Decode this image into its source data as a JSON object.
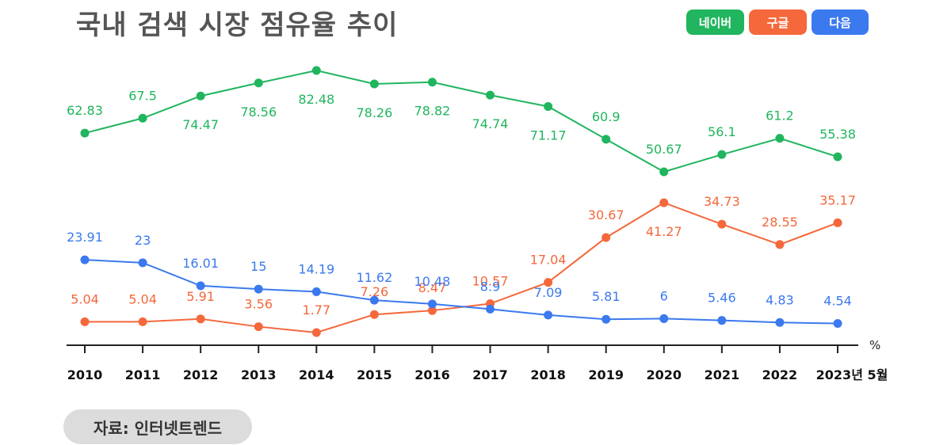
{
  "title": "국내 검색 시장 점유율 추이",
  "legend": [
    {
      "label": "네이버",
      "color": "#20b55e"
    },
    {
      "label": "구글",
      "color": "#f4683b"
    },
    {
      "label": "다음",
      "color": "#3b79ef"
    }
  ],
  "source": "자료: 인터넷트렌드",
  "chart_data": {
    "type": "line",
    "categories": [
      "2010",
      "2011",
      "2012",
      "2013",
      "2014",
      "2015",
      "2016",
      "2017",
      "2018",
      "2019",
      "2020",
      "2021",
      "2022",
      "2023년 5월"
    ],
    "unit_label": "%",
    "series": [
      {
        "name": "네이버",
        "color": "#20b55e",
        "values": [
          62.83,
          67.5,
          74.47,
          78.56,
          82.48,
          78.26,
          78.82,
          74.74,
          71.17,
          60.9,
          50.67,
          56.1,
          61.2,
          55.38
        ],
        "label_position": [
          "above",
          "above",
          "below",
          "below",
          "below",
          "below",
          "below",
          "below",
          "below",
          "above",
          "above",
          "above",
          "above",
          "above"
        ]
      },
      {
        "name": "구글",
        "color": "#f4683b",
        "values": [
          5.04,
          5.04,
          5.91,
          3.56,
          1.77,
          7.26,
          8.47,
          10.57,
          17.04,
          30.67,
          41.27,
          34.73,
          28.55,
          35.17
        ],
        "label_position": [
          "above",
          "above",
          "above",
          "above",
          "above",
          "above",
          "above",
          "above",
          "above",
          "above",
          "below",
          "above",
          "above",
          "above"
        ]
      },
      {
        "name": "다음",
        "color": "#3b79ef",
        "values": [
          23.91,
          23,
          16.01,
          15,
          14.19,
          11.62,
          10.48,
          8.9,
          7.09,
          5.81,
          6,
          5.46,
          4.83,
          4.54
        ],
        "label_position": [
          "above",
          "above",
          "above",
          "above",
          "above",
          "above",
          "above",
          "above",
          "above",
          "above",
          "above",
          "above",
          "above",
          "above"
        ]
      }
    ]
  }
}
